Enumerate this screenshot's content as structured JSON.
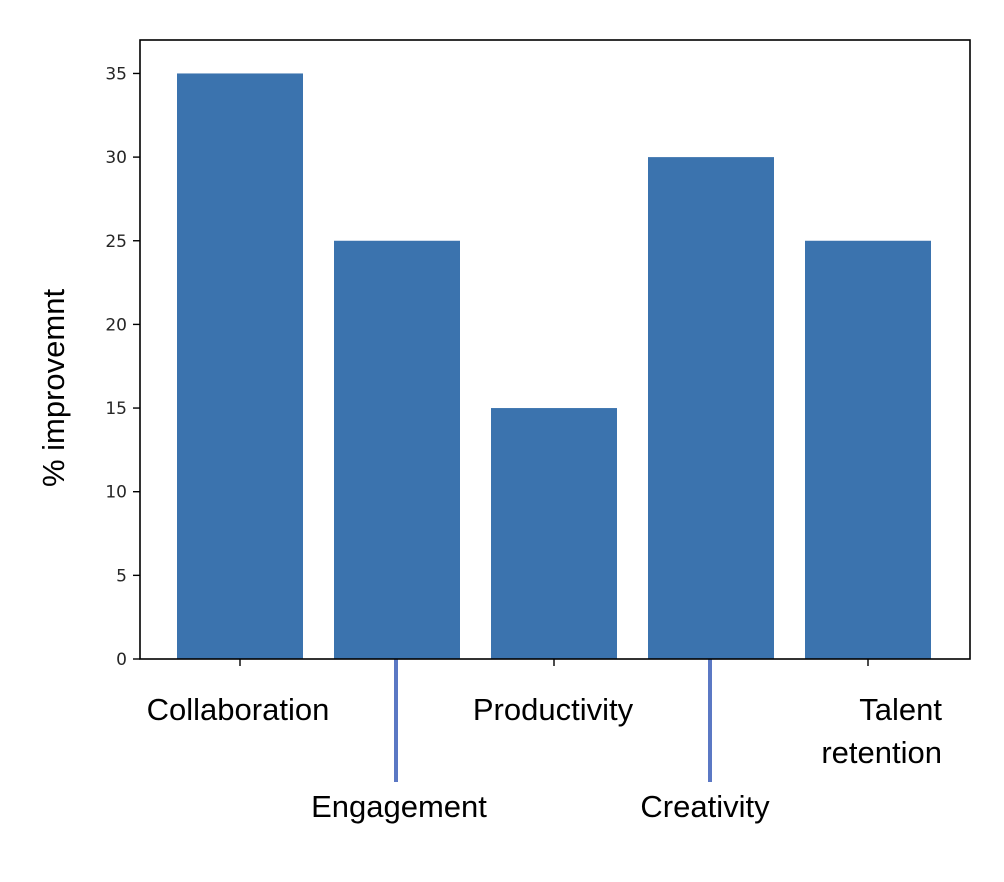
{
  "chart_data": {
    "type": "bar",
    "categories": [
      "Collaboration",
      "Engagement",
      "Productivity",
      "Creativity",
      "Talent retention"
    ],
    "category_lines": [
      [
        "Collaboration"
      ],
      [
        "Engagement"
      ],
      [
        "Productivity"
      ],
      [
        "Creativity"
      ],
      [
        "Talent",
        "retention"
      ]
    ],
    "values": [
      35,
      25,
      15,
      30,
      25
    ],
    "title": "",
    "xlabel": "",
    "ylabel": "% improvemnt",
    "ylim": [
      0,
      37
    ],
    "yticks": [
      0,
      5,
      10,
      15,
      20,
      25,
      30,
      35
    ],
    "grid": false,
    "legend": "none"
  },
  "colors": {
    "bar": "#3b73ae",
    "leader_line": "#5b78c4",
    "axis": "#000000"
  }
}
